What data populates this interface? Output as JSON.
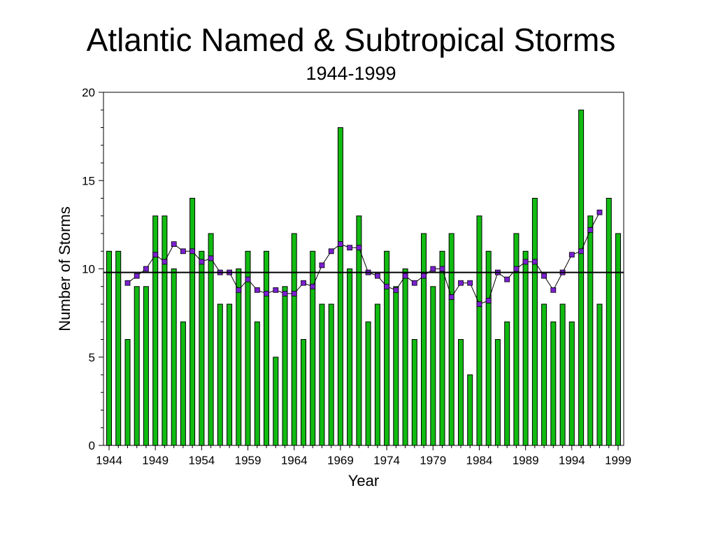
{
  "chart_data": {
    "type": "bar",
    "title": "Atlantic Named & Subtropical Storms",
    "subtitle": "1944-1999",
    "xlabel": "Year",
    "ylabel": "Number of  Storms",
    "xlim": [
      1944,
      1999
    ],
    "ylim": [
      0,
      20
    ],
    "y_ticks": [
      0,
      5,
      10,
      15,
      20
    ],
    "x_ticks": [
      1944,
      1949,
      1954,
      1959,
      1964,
      1969,
      1974,
      1979,
      1984,
      1989,
      1994,
      1999
    ],
    "grid": false,
    "legend": "none",
    "categories": [
      1944,
      1945,
      1946,
      1947,
      1948,
      1949,
      1950,
      1951,
      1952,
      1953,
      1954,
      1955,
      1956,
      1957,
      1958,
      1959,
      1960,
      1961,
      1962,
      1963,
      1964,
      1965,
      1966,
      1967,
      1968,
      1969,
      1970,
      1971,
      1972,
      1973,
      1974,
      1975,
      1976,
      1977,
      1978,
      1979,
      1980,
      1981,
      1982,
      1983,
      1984,
      1985,
      1986,
      1987,
      1988,
      1989,
      1990,
      1991,
      1992,
      1993,
      1994,
      1995,
      1996,
      1997,
      1998,
      1999
    ],
    "values": [
      11,
      11,
      6,
      9,
      9,
      13,
      13,
      10,
      7,
      14,
      11,
      12,
      8,
      8,
      10,
      11,
      7,
      11,
      5,
      9,
      12,
      6,
      11,
      8,
      8,
      18,
      10,
      13,
      7,
      8,
      11,
      9,
      10,
      6,
      12,
      9,
      11,
      12,
      6,
      4,
      13,
      11,
      6,
      7,
      12,
      11,
      14,
      8,
      7,
      8,
      7,
      19,
      13,
      8,
      14,
      12
    ],
    "bar_color": "#11bb11",
    "series": [
      {
        "kind": "line",
        "x": [
          1946,
          1947,
          1948,
          1949,
          1950,
          1951,
          1952,
          1953,
          1954,
          1955,
          1956,
          1957,
          1958,
          1959,
          1960,
          1961,
          1962,
          1963,
          1964,
          1965,
          1966,
          1967,
          1968,
          1969,
          1970,
          1971,
          1972,
          1973,
          1974,
          1975,
          1976,
          1977,
          1978,
          1979,
          1980,
          1981,
          1982,
          1983,
          1984,
          1985,
          1986,
          1987,
          1988,
          1989,
          1990,
          1991,
          1992,
          1993,
          1994,
          1995,
          1996,
          1997
        ],
        "values": [
          9.2,
          9.6,
          10.0,
          10.8,
          10.4,
          11.4,
          11.0,
          11.0,
          10.4,
          10.6,
          9.8,
          9.8,
          8.8,
          9.4,
          8.8,
          8.6,
          8.8,
          8.6,
          8.6,
          9.2,
          9.0,
          10.2,
          11.0,
          11.4,
          11.2,
          11.2,
          9.8,
          9.6,
          9.0,
          8.8,
          9.6,
          9.2,
          9.6,
          10.0,
          10.0,
          8.4,
          9.2,
          9.2,
          8.0,
          8.2,
          9.8,
          9.4,
          10.0,
          10.4,
          10.4,
          9.6,
          8.8,
          9.8,
          10.8,
          11.0,
          12.2,
          13.2
        ],
        "color": "#7a20d0"
      },
      {
        "kind": "hline",
        "value": 9.8,
        "color": "#000000"
      }
    ]
  }
}
